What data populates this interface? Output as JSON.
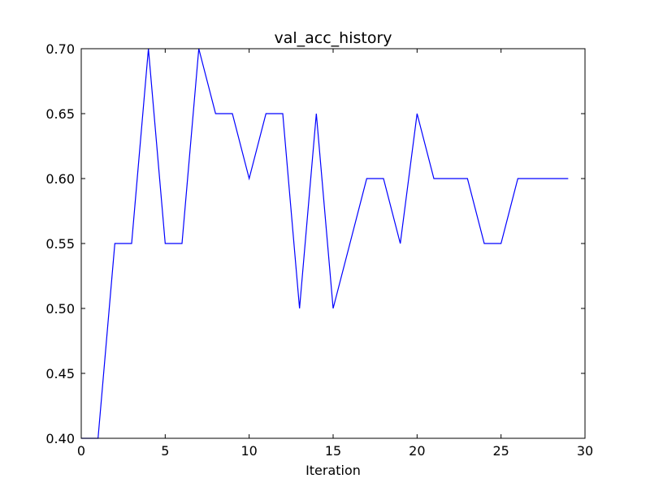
{
  "chart_data": {
    "type": "line",
    "title": "val_acc_history",
    "xlabel": "Iteration",
    "ylabel": "",
    "xlim": [
      0,
      30
    ],
    "ylim": [
      0.4,
      0.7
    ],
    "x_ticks": [
      0,
      5,
      10,
      15,
      20,
      25,
      30
    ],
    "x_tick_labels": [
      "0",
      "5",
      "10",
      "15",
      "20",
      "25",
      "30"
    ],
    "y_ticks": [
      0.4,
      0.45,
      0.5,
      0.55,
      0.6,
      0.65,
      0.7
    ],
    "y_tick_labels": [
      "0.40",
      "0.45",
      "0.50",
      "0.55",
      "0.60",
      "0.65",
      "0.70"
    ],
    "grid": false,
    "legend": "none",
    "series": [
      {
        "color": "#0000ff",
        "x": [
          0,
          1,
          2,
          3,
          4,
          5,
          6,
          7,
          8,
          9,
          10,
          11,
          12,
          13,
          14,
          15,
          16,
          17,
          18,
          19,
          20,
          21,
          22,
          23,
          24,
          25,
          26,
          27,
          28,
          29
        ],
        "y": [
          0.4,
          0.4,
          0.55,
          0.55,
          0.7,
          0.55,
          0.55,
          0.7,
          0.65,
          0.65,
          0.6,
          0.65,
          0.65,
          0.5,
          0.65,
          0.5,
          0.55,
          0.6,
          0.6,
          0.55,
          0.65,
          0.6,
          0.6,
          0.6,
          0.55,
          0.55,
          0.6,
          0.6,
          0.6,
          0.6
        ]
      }
    ]
  }
}
